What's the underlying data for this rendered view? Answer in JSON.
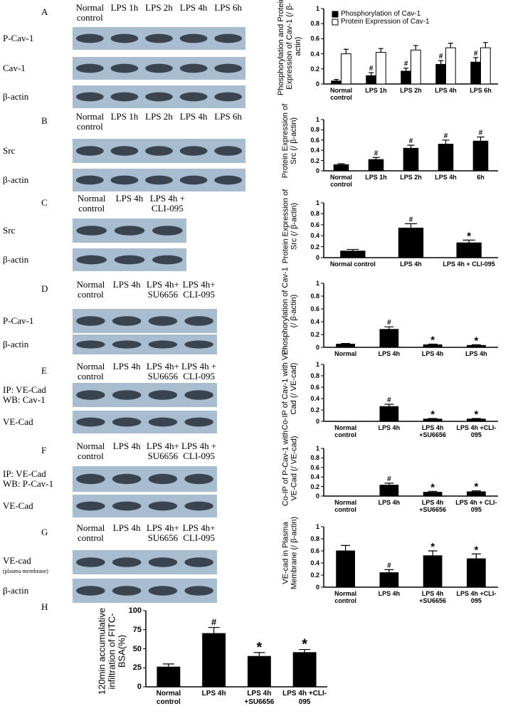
{
  "blots": [
    {
      "letter": "A",
      "lanes": [
        "Normal control",
        "LPS 1h",
        "LPS 2h",
        "LPS 4h",
        "LPS 6h"
      ],
      "rows": [
        "P-Cav-1",
        "Cav-1",
        "β-actin"
      ]
    },
    {
      "letter": "B",
      "lanes": [
        "Normal control",
        "LPS 1h",
        "LPS 2h",
        "LPS 4h",
        "LPS 6h"
      ],
      "rows": [
        "Src",
        "β-actin"
      ]
    },
    {
      "letter": "C",
      "lanes": [
        "Normal control",
        "LPS 4h",
        "LPS 4h + CLI-095"
      ],
      "rows": [
        "Src",
        "β-actin"
      ]
    },
    {
      "letter": "D",
      "lanes": [
        "Normal control",
        "LPS 4h",
        "LPS 4h+ SU6656",
        "LPS 4h+ CLI-095"
      ],
      "rows": [
        "P-Cav-1",
        "β-actin"
      ]
    },
    {
      "letter": "E",
      "lanes": [
        "Normal control",
        "LPS 4h",
        "LPS 4h+ SU6656",
        "LPS 4h + CLI-095"
      ],
      "rows": [
        "IP: VE-Cad WB: Cav-1",
        "VE-Cad"
      ]
    },
    {
      "letter": "F",
      "lanes": [
        "Normal control",
        "LPS 4h",
        "LPS 4h+ SU6656",
        "LPS 4h + CLI-095"
      ],
      "rows": [
        "IP: VE-Cad WB: P-Cav-1",
        "VE-Cad"
      ]
    },
    {
      "letter": "G",
      "lanes": [
        "Normal control",
        "LPS 4h",
        "LPS 4h+ SU6656",
        "LPS 4h+ CLI-095"
      ],
      "rows": [
        "VE-cad",
        "β-actin"
      ],
      "note": "(plasma membrane)"
    }
  ],
  "chart_data": [
    {
      "type": "bar",
      "ylabel": "Phosphorylation and Protein Expression of Cav-1 (/ β-actin)",
      "categories": [
        "Normal control",
        "LPS 1h",
        "LPS 2h",
        "LPS 4h",
        "LPS 6h"
      ],
      "ylim": [
        0,
        1
      ],
      "yticks": [
        0,
        0.2,
        0.4,
        0.6,
        0.8,
        1
      ],
      "legend": "top-left",
      "series": [
        {
          "name": "Phosphorylation of Cav-1",
          "color": "#000000",
          "values": [
            0.04,
            0.11,
            0.17,
            0.26,
            0.29
          ],
          "errors": [
            0.02,
            0.04,
            0.04,
            0.05,
            0.06
          ],
          "markers": [
            null,
            "#",
            "#",
            "#",
            "#"
          ]
        },
        {
          "name": "Protein Expression of Cav-1",
          "color": "#ffffff",
          "values": [
            0.4,
            0.42,
            0.45,
            0.48,
            0.48
          ],
          "errors": [
            0.06,
            0.05,
            0.06,
            0.06,
            0.07
          ]
        }
      ]
    },
    {
      "type": "bar",
      "ylabel": "Protein Expression of Src (/ β-actin)",
      "categories": [
        "Normal control",
        "LPS 1h",
        "LPS 2h",
        "LPS 4h",
        "6h"
      ],
      "ylim": [
        0,
        1
      ],
      "yticks": [
        0,
        0.2,
        0.4,
        0.6,
        0.8,
        1
      ],
      "series": [
        {
          "color": "#000000",
          "values": [
            0.12,
            0.22,
            0.44,
            0.52,
            0.58
          ],
          "errors": [
            0.02,
            0.04,
            0.06,
            0.08,
            0.08
          ],
          "markers": [
            null,
            "#",
            "#",
            "#",
            "#"
          ]
        }
      ]
    },
    {
      "type": "bar",
      "ylabel": "Protein Expression of Src (/ β-actin)",
      "categories": [
        "Normal control",
        "LPS 4h",
        "LPS 4h + CLI-095"
      ],
      "ylim": [
        0,
        1
      ],
      "yticks": [
        0,
        0.2,
        0.4,
        0.6,
        0.8,
        1
      ],
      "series": [
        {
          "color": "#000000",
          "values": [
            0.12,
            0.54,
            0.27
          ],
          "errors": [
            0.03,
            0.08,
            0.05
          ],
          "markers": [
            null,
            "#",
            "*"
          ]
        }
      ]
    },
    {
      "type": "bar",
      "ylabel": "Phosphorylation of Cav-1 (/ β-actin)",
      "categories": [
        "Normal",
        "LPS 4h",
        "LPS 4h",
        "LPS 4h"
      ],
      "ylim": [
        0,
        1
      ],
      "yticks": [
        0,
        0.2,
        0.4,
        0.6,
        0.8,
        1
      ],
      "series": [
        {
          "color": "#000000",
          "values": [
            0.05,
            0.28,
            0.04,
            0.03
          ],
          "errors": [
            0.01,
            0.04,
            0.01,
            0.01
          ],
          "markers": [
            null,
            "#",
            "*",
            "*"
          ]
        }
      ]
    },
    {
      "type": "bar",
      "ylabel": "Co-IP of Cav-1 with VE-Cad (/ VE-cad)",
      "categories": [
        "Normal control",
        "LPS 4h",
        "LPS 4h +SU6656",
        "LPS 4h +CLI-095"
      ],
      "ylim": [
        0,
        1
      ],
      "yticks": [
        0,
        0.2,
        0.4,
        0.6,
        0.8,
        1
      ],
      "series": [
        {
          "color": "#000000",
          "values": [
            0,
            0.26,
            0.04,
            0.04
          ],
          "errors": [
            0,
            0.04,
            0.01,
            0.01
          ],
          "markers": [
            null,
            "#",
            "*",
            "*"
          ]
        }
      ]
    },
    {
      "type": "bar",
      "ylabel": "Co-IP of P-Cav-1 with VE-Cad (/ VE-cad)",
      "categories": [
        "Normal control",
        "LPS 4h",
        "LPS 4h +SU6656",
        "LPS 4h + CLI-095"
      ],
      "ylim": [
        0,
        1
      ],
      "yticks": [
        0,
        0.2,
        0.4,
        0.6,
        0.8,
        1
      ],
      "series": [
        {
          "color": "#000000",
          "values": [
            0,
            0.23,
            0.08,
            0.09
          ],
          "errors": [
            0,
            0.04,
            0.02,
            0.02
          ],
          "markers": [
            null,
            "#",
            "*",
            "*"
          ]
        }
      ]
    },
    {
      "type": "bar",
      "ylabel": "VE-cad in Plasma Membrane (/ β-actin)",
      "categories": [
        "Normal control",
        "LPS 4h",
        "LPS 4h +SU6656",
        "LPS 4h +CLI-095"
      ],
      "ylim": [
        0,
        1
      ],
      "yticks": [
        0,
        0.2,
        0.4,
        0.6,
        0.8,
        1
      ],
      "series": [
        {
          "color": "#000000",
          "values": [
            0.6,
            0.24,
            0.52,
            0.47
          ],
          "errors": [
            0.09,
            0.05,
            0.08,
            0.08
          ],
          "markers": [
            null,
            "#",
            "*",
            "*"
          ]
        }
      ]
    },
    {
      "type": "bar",
      "letter": "H",
      "ylabel": "120min accumulative infiltration of FITC-BSA(%)",
      "categories": [
        "Normal control",
        "LPS 4h",
        "LPS 4h +SU6656",
        "LPS 4h +CLI-095"
      ],
      "ylim": [
        0,
        100
      ],
      "yticks": [
        0,
        25,
        50,
        75,
        100
      ],
      "series": [
        {
          "color": "#000000",
          "values": [
            26,
            70,
            40,
            45
          ],
          "errors": [
            4,
            8,
            5,
            4
          ],
          "markers": [
            null,
            "#",
            "*",
            "*"
          ]
        }
      ]
    }
  ]
}
